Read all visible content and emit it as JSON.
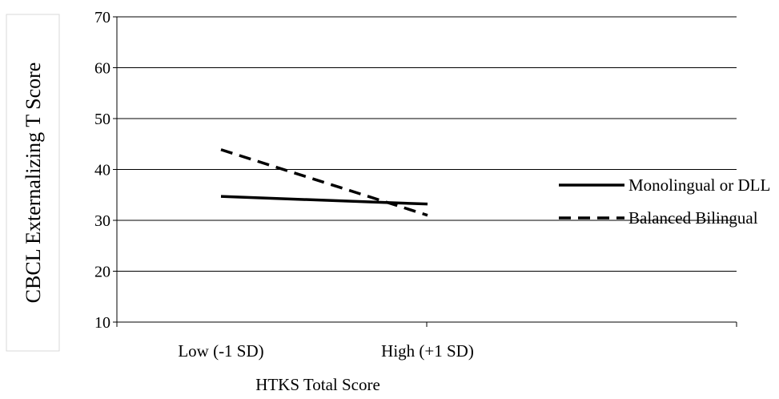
{
  "chart_data": {
    "type": "line",
    "title": "",
    "xlabel": "HTKS Total Score",
    "ylabel": "CBCL Externalizing T Score",
    "categories": [
      "Low (-1 SD)",
      "High (+1 SD)"
    ],
    "ylim": [
      10,
      70
    ],
    "yticks": [
      10,
      20,
      30,
      40,
      50,
      60,
      70
    ],
    "grid": true,
    "legend_position": "right",
    "series": [
      {
        "name": "Monolingual or DLL",
        "values": [
          34.7,
          33.2
        ],
        "style": "solid",
        "color": "#000000"
      },
      {
        "name": "Balanced Bilingual",
        "values": [
          43.9,
          31.0
        ],
        "style": "dashed",
        "color": "#000000"
      }
    ]
  }
}
